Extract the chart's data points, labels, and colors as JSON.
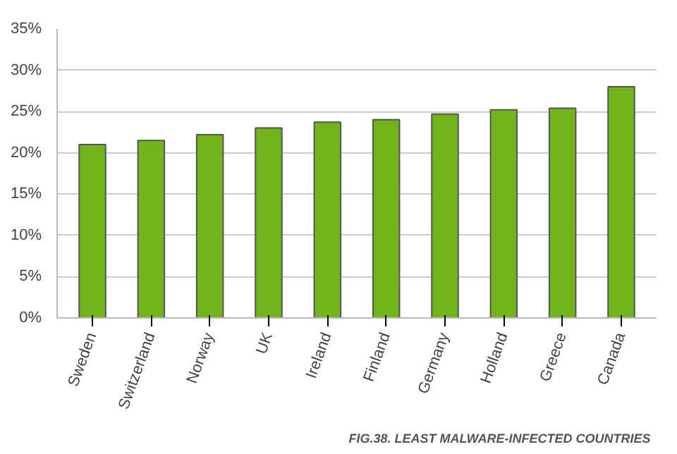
{
  "chart_data": {
    "type": "bar",
    "categories": [
      "Sweden",
      "Switzerland",
      "Norway",
      "UK",
      "Ireland",
      "Finland",
      "Germany",
      "Holland",
      "Greece",
      "Canada"
    ],
    "values": [
      21,
      21.5,
      22.2,
      23,
      23.7,
      24,
      24.7,
      25.2,
      25.4,
      28
    ],
    "color": "#72b51b",
    "ylim": [
      0,
      35
    ],
    "yticks": [
      {
        "value": 0,
        "label": "0%"
      },
      {
        "value": 5,
        "label": "5%"
      },
      {
        "value": 10,
        "label": "10%"
      },
      {
        "value": 15,
        "label": "15%"
      },
      {
        "value": 20,
        "label": "20%"
      },
      {
        "value": 25,
        "label": "25%"
      },
      {
        "value": 30,
        "label": "30%"
      },
      {
        "value": 35,
        "label": "35%"
      }
    ],
    "grid": "y",
    "annotations": [
      "FIG.38. LEAST MALWARE-INFECTED COUNTRIES"
    ]
  }
}
